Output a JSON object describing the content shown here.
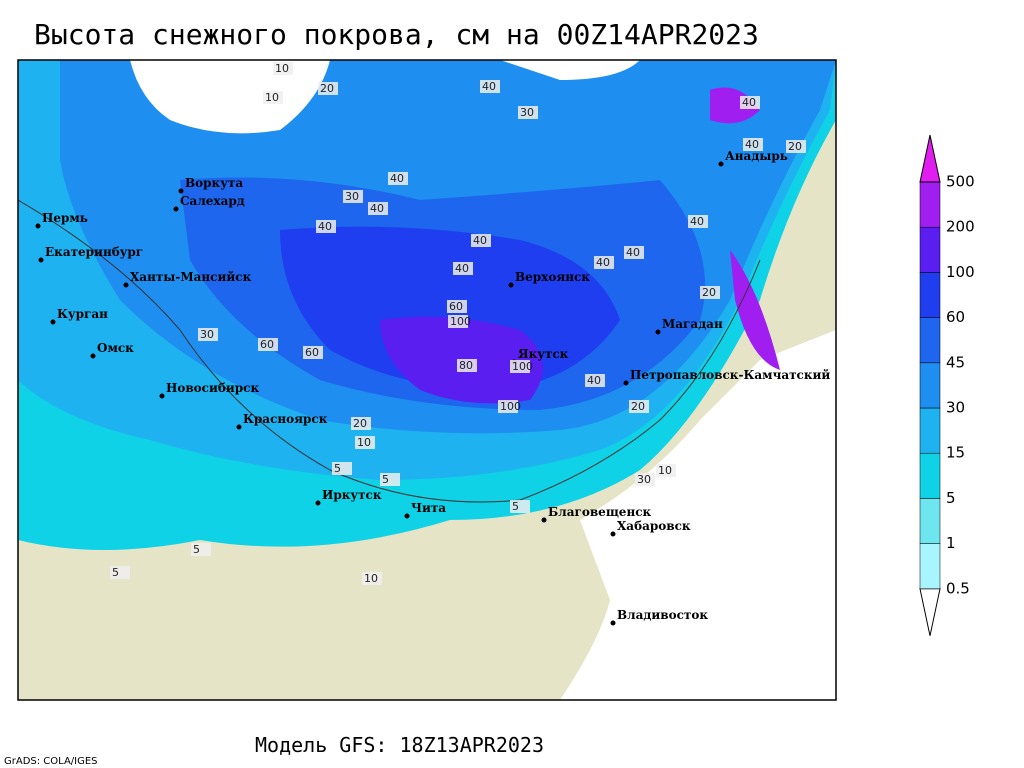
{
  "title": "Высота снежного покрова, см на 00Z14APR2023",
  "subtitle": "Модель GFS: 18Z13APR2023",
  "credit": "GrADS: COLA/IGES",
  "cities": [
    "Воркута",
    "Салехард",
    "Пермь",
    "Екатеринбург",
    "Ханты-Мансийск",
    "Курган",
    "Омск",
    "Новосибирск",
    "Красноярск",
    "Иркутск",
    "Чита",
    "Благовещенск",
    "Хабаровск",
    "Владивосток",
    "Верхоянск",
    "Якутск",
    "Магадан",
    "Анадырь",
    "Петропавловск-Камчатский"
  ],
  "contour_labels": [
    10,
    10,
    20,
    40,
    30,
    40,
    30,
    40,
    40,
    40,
    40,
    40,
    40,
    40,
    60,
    100,
    60,
    60,
    80,
    100,
    100,
    40,
    20,
    20,
    10,
    5,
    5,
    5,
    5,
    10,
    30,
    20,
    40,
    40,
    20,
    10,
    30,
    5
  ],
  "colorbar": {
    "levels": [
      0.5,
      1,
      5,
      15,
      30,
      45,
      60,
      100,
      200,
      500
    ],
    "colors": [
      "#ffffff",
      "#a8f4ff",
      "#6ee6f0",
      "#10d2e6",
      "#1eb2f0",
      "#1e8ef0",
      "#1e66ee",
      "#1e3ef0",
      "#5a1ef0",
      "#a01ef0",
      "#e01ef0"
    ]
  }
}
